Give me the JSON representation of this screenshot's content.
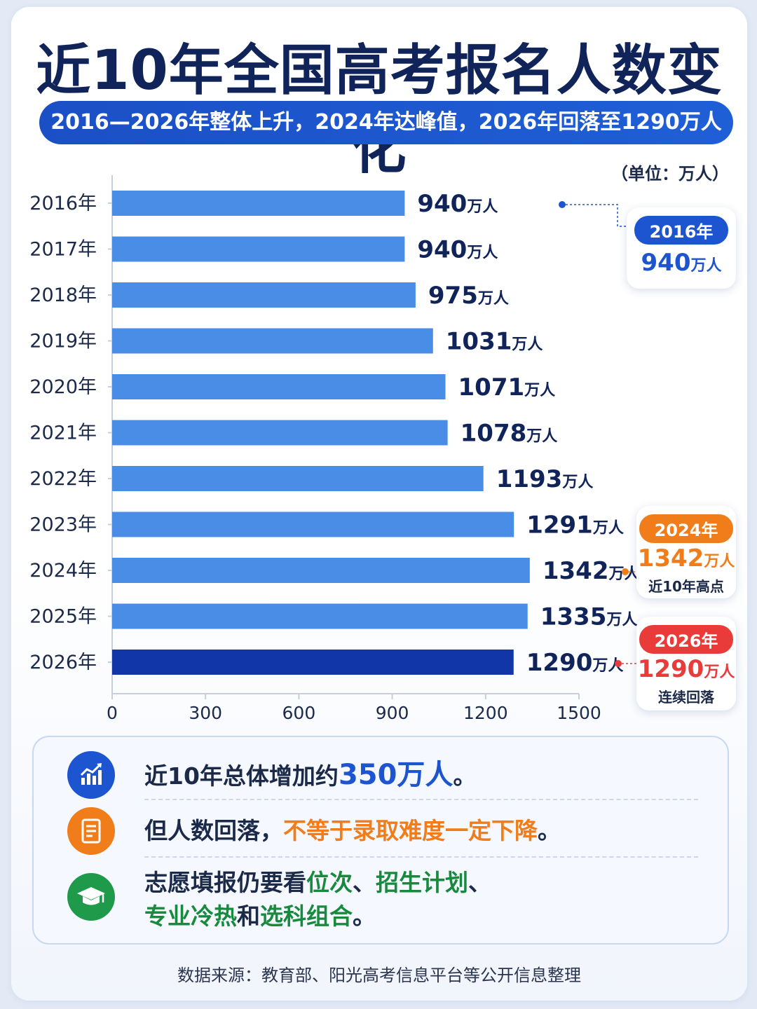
{
  "title": "近10年全国高考报名人数变化",
  "subtitle": "2016—2026年整体上升，2024年达峰值，2026年回落至1290万人",
  "unit_label": "（单位：万人）",
  "chart_data": {
    "type": "bar",
    "orientation": "horizontal",
    "categories": [
      "2016年",
      "2017年",
      "2018年",
      "2019年",
      "2020年",
      "2021年",
      "2022年",
      "2023年",
      "2024年",
      "2025年",
      "2026年"
    ],
    "values": [
      940,
      940,
      975,
      1031,
      1071,
      1078,
      1193,
      1291,
      1342,
      1335,
      1290
    ],
    "value_unit": "万人",
    "xlim": [
      0,
      1500
    ],
    "x_ticks": [
      "0",
      "300",
      "600",
      "900",
      "1200",
      "1500"
    ],
    "highlight_category": "2026年",
    "colors": {
      "bar": "#4a8de6",
      "bar_highlight": "#1036a8",
      "label": "#10245a"
    }
  },
  "callouts": [
    {
      "year": "2016年",
      "value": "940",
      "unit": "万人",
      "note": "",
      "color": "#1c55cf"
    },
    {
      "year": "2024年",
      "value": "1342",
      "unit": "万人",
      "note": "近10年高点",
      "color": "#f07d19"
    },
    {
      "year": "2026年",
      "value": "1290",
      "unit": "万人",
      "note": "连续回落",
      "color": "#ea3b3b"
    }
  ],
  "summary": {
    "line1": {
      "pre": "近10年总体增加约",
      "highlight": "350万人",
      "post": "。"
    },
    "line2": {
      "pre": "但人数回落，",
      "highlight": "不等于录取难度一定下降",
      "post": "。"
    },
    "line3": {
      "a": "志愿填报仍要看",
      "b": "位次",
      "c": "、",
      "d": "招生计划",
      "e": "、",
      "f": "专业冷热",
      "g": "和",
      "h": "选科组合",
      "i": "。"
    }
  },
  "source": "数据来源：教育部、阳光高考信息平台等公开信息整理"
}
